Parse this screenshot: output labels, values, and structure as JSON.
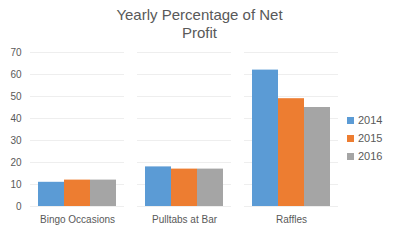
{
  "chart_data": {
    "type": "bar",
    "title": "Yearly Percentage of Net Profit",
    "categories": [
      "Bingo Occasions",
      "Pulltabs at Bar",
      "Raffles"
    ],
    "series": [
      {
        "name": "2014",
        "color": "#5b9bd5",
        "values": [
          11,
          18,
          62
        ]
      },
      {
        "name": "2015",
        "color": "#ed7d31",
        "values": [
          12,
          17,
          49
        ]
      },
      {
        "name": "2016",
        "color": "#a5a5a5",
        "values": [
          12,
          17,
          45
        ]
      }
    ],
    "ylim": [
      0,
      70
    ],
    "yticks": [
      0,
      10,
      20,
      30,
      40,
      50,
      60,
      70
    ],
    "grid": true,
    "legend": "right"
  }
}
